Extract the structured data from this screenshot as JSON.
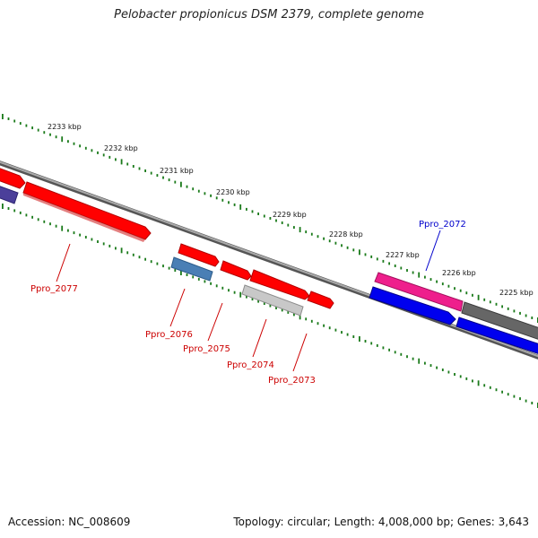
{
  "title": "Pelobacter propionicus DSM 2379, complete genome",
  "footer": {
    "accession": "Accession: NC_008609",
    "summary": "Topology: circular; Length: 4,008,000 bp; Genes: 3,643"
  },
  "scale_labels": [
    "2233 kbp",
    "2232 kbp",
    "2231 kbp",
    "2230 kbp",
    "2229 kbp",
    "2228 kbp",
    "2227 kbp",
    "2226 kbp",
    "2225 kbp"
  ],
  "gene_labels": [
    {
      "text": "Ppro_2077",
      "color": "#cc0000"
    },
    {
      "text": "Ppro_2076",
      "color": "#cc0000"
    },
    {
      "text": "Ppro_2075",
      "color": "#cc0000"
    },
    {
      "text": "Ppro_2074",
      "color": "#cc0000"
    },
    {
      "text": "Ppro_2073",
      "color": "#cc0000"
    },
    {
      "text": "Ppro_2072",
      "color": "#0000cc"
    }
  ],
  "colors": {
    "backbone": "#808080",
    "tick": "#1a7a1a",
    "red": "#ff0000",
    "blue": "#0000ee",
    "steelblue": "#4a7fb5",
    "pink": "#ee1f8c",
    "grey": "#666666",
    "lightgrey": "#bdbdbd",
    "purple": "#4b3f9a"
  }
}
